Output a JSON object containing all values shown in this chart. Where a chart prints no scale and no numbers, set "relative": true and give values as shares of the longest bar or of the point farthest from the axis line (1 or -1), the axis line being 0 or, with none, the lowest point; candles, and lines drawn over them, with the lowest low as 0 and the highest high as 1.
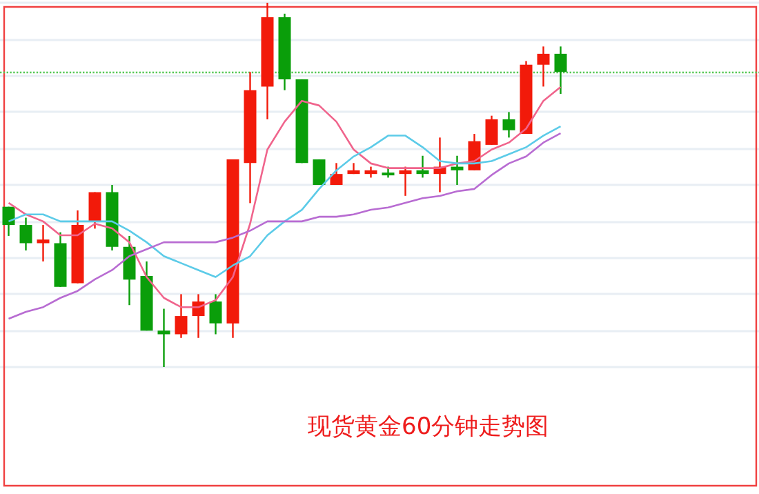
{
  "chart_data": [
    {
      "type": "candlestick",
      "title": "现货黄金60分钟走势图",
      "relative": true,
      "grid": "y",
      "categories": [
        null,
        null,
        null,
        null,
        null,
        null,
        null,
        null,
        null,
        null,
        null,
        null,
        null,
        null,
        null,
        null,
        null,
        null,
        null,
        null,
        null,
        null,
        null,
        null,
        null,
        null,
        null,
        null,
        null,
        null,
        null,
        null,
        null
      ],
      "ohlc": [
        [
          0.44,
          0.44,
          0.36,
          0.39
        ],
        [
          0.39,
          0.41,
          0.32,
          0.34
        ],
        [
          0.34,
          0.39,
          0.29,
          0.35
        ],
        [
          0.34,
          0.37,
          0.22,
          0.22
        ],
        [
          0.23,
          0.43,
          0.23,
          0.39
        ],
        [
          0.4,
          0.48,
          0.38,
          0.48
        ],
        [
          0.48,
          0.5,
          0.32,
          0.33
        ],
        [
          0.33,
          0.36,
          0.17,
          0.24
        ],
        [
          0.25,
          0.29,
          0.1,
          0.1
        ],
        [
          0.1,
          0.16,
          0,
          0.09
        ],
        [
          0.09,
          0.2,
          0.08,
          0.14
        ],
        [
          0.14,
          0.2,
          0.08,
          0.18
        ],
        [
          0.18,
          0.2,
          0.09,
          0.12
        ],
        [
          0.12,
          0.57,
          0.08,
          0.57
        ],
        [
          0.56,
          0.81,
          0.45,
          0.76
        ],
        [
          0.77,
          1,
          0.68,
          0.96
        ],
        [
          0.96,
          0.97,
          0.76,
          0.79
        ],
        [
          0.79,
          0.79,
          0.56,
          0.56
        ],
        [
          0.57,
          0.57,
          0.5,
          0.5
        ],
        [
          0.5,
          0.56,
          0.5,
          0.53
        ],
        [
          0.53,
          0.56,
          0.53,
          0.54
        ],
        [
          0.53,
          0.55,
          0.52,
          0.54
        ],
        [
          0.53,
          0.55,
          0.52,
          0.53
        ],
        [
          0.53,
          0.55,
          0.47,
          0.54
        ],
        [
          0.54,
          0.58,
          0.52,
          0.53
        ],
        [
          0.53,
          0.63,
          0.48,
          0.55
        ],
        [
          0.55,
          0.58,
          0.5,
          0.54
        ],
        [
          0.54,
          0.64,
          0.54,
          0.62
        ],
        [
          0.61,
          0.69,
          0.61,
          0.68
        ],
        [
          0.68,
          0.7,
          0.63,
          0.65
        ],
        [
          0.64,
          0.84,
          0.64,
          0.83
        ],
        [
          0.83,
          0.88,
          0.77,
          0.86
        ],
        [
          0.86,
          0.88,
          0.75,
          0.81
        ]
      ],
      "colors": [
        "#0a9e0a",
        "#0a9e0a",
        "#f21a0a",
        "#0a9e0a",
        "#f21a0a",
        "#f21a0a",
        "#0a9e0a",
        "#0a9e0a",
        "#0a9e0a",
        "#0a9e0a",
        "#f21a0a",
        "#f21a0a",
        "#0a9e0a",
        "#f21a0a",
        "#f21a0a",
        "#f21a0a",
        "#0a9e0a",
        "#0a9e0a",
        "#0a9e0a",
        "#f21a0a",
        "#f21a0a",
        "#f21a0a",
        "#0a9e0a",
        "#f21a0a",
        "#0a9e0a",
        "#f21a0a",
        "#0a9e0a",
        "#f21a0a",
        "#f21a0a",
        "#0a9e0a",
        "#f21a0a",
        "#f21a0a",
        "#0a9e0a"
      ],
      "ref_lines": [
        {
          "axis": "y",
          "value": 0.81,
          "color": "#55c855",
          "line_style": "dotted"
        }
      ]
    },
    {
      "type": "line",
      "relative": true,
      "marker": "none",
      "categories": [
        null,
        null,
        null,
        null,
        null,
        null,
        null,
        null,
        null,
        null,
        null,
        null,
        null,
        null,
        null,
        null,
        null,
        null,
        null,
        null,
        null,
        null,
        null,
        null,
        null,
        null,
        null,
        null,
        null,
        null,
        null,
        null,
        null
      ],
      "series": [
        {
          "color": "#f0648c",
          "values": [
            0.5,
            0.45,
            0.42,
            0.36,
            0.36,
            0.41,
            0.39,
            0.33,
            0.18,
            0.09,
            0.05,
            0.05,
            0.08,
            0.18,
            0.41,
            0.73,
            0.85,
            0.94,
            0.92,
            0.85,
            0.73,
            0.67,
            0.65,
            0.65,
            0.65,
            0.65,
            0.67,
            0.68,
            0.73,
            0.76,
            0.82,
            0.94,
            1
          ]
        },
        {
          "color": "#5ccbe8",
          "values": [
            0.42,
            0.45,
            0.45,
            0.42,
            0.42,
            0.42,
            0.42,
            0.38,
            0.33,
            0.27,
            0.24,
            0.21,
            0.18,
            0.23,
            0.27,
            0.36,
            0.42,
            0.47,
            0.56,
            0.64,
            0.7,
            0.74,
            0.79,
            0.79,
            0.74,
            0.68,
            0.67,
            0.67,
            0.68,
            0.71,
            0.74,
            0.79,
            0.83
          ]
        },
        {
          "color": "#b86cd2",
          "values": [
            0,
            0.03,
            0.05,
            0.09,
            0.12,
            0.17,
            0.21,
            0.27,
            0.3,
            0.33,
            0.33,
            0.33,
            0.33,
            0.35,
            0.38,
            0.42,
            0.42,
            0.42,
            0.44,
            0.44,
            0.45,
            0.47,
            0.48,
            0.5,
            0.52,
            0.53,
            0.55,
            0.56,
            0.62,
            0.67,
            0.7,
            0.76,
            0.8
          ]
        }
      ]
    }
  ]
}
